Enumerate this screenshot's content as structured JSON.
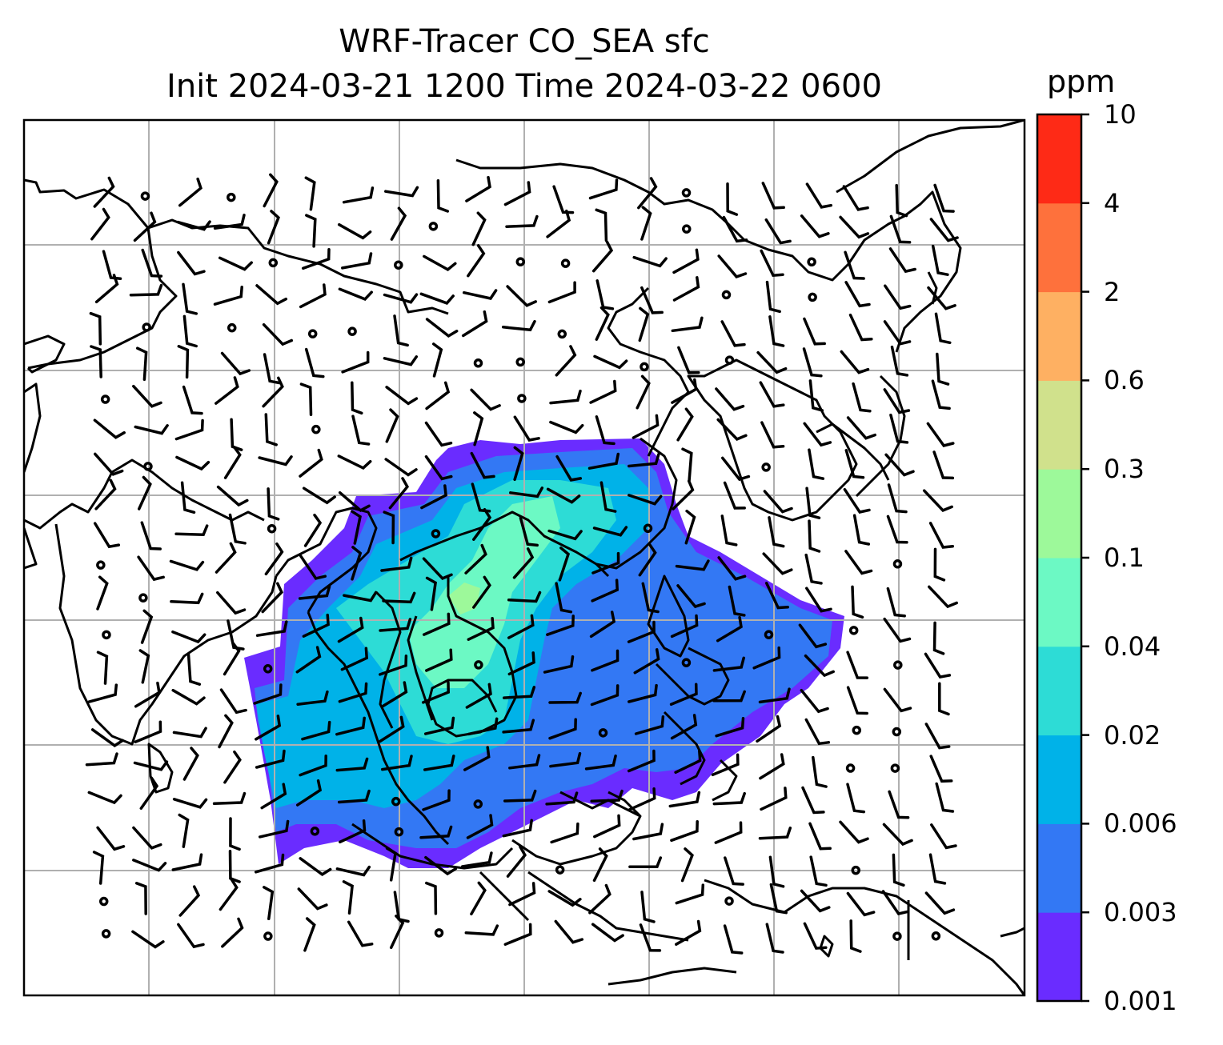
{
  "title": {
    "line1": "WRF-Tracer CO_SEA sfc",
    "line2": "Init 2024-03-21 1200 Time 2024-03-22 0600"
  },
  "colorbar": {
    "unit": "ppm",
    "levels": [
      "0.001",
      "0.003",
      "0.006",
      "0.02",
      "0.04",
      "0.1",
      "0.3",
      "0.6",
      "2",
      "4",
      "10"
    ],
    "colors": [
      "#6a2cff",
      "#3378f4",
      "#00b2e8",
      "#2ddcd6",
      "#6cf9c4",
      "#9df99a",
      "#d0e18c",
      "#feb062",
      "#fe713c",
      "#fe2a16"
    ]
  },
  "map": {
    "projection": "mercator",
    "gridlines": true,
    "field_colors": {
      "lowest": "#6a2cff",
      "low": "#3378f4",
      "mid": "#00b2e8",
      "cyan": "#2ddcd6",
      "green": "#6cf9c4",
      "light_green": "#9df99a"
    },
    "overlay": "wind-barbs"
  }
}
